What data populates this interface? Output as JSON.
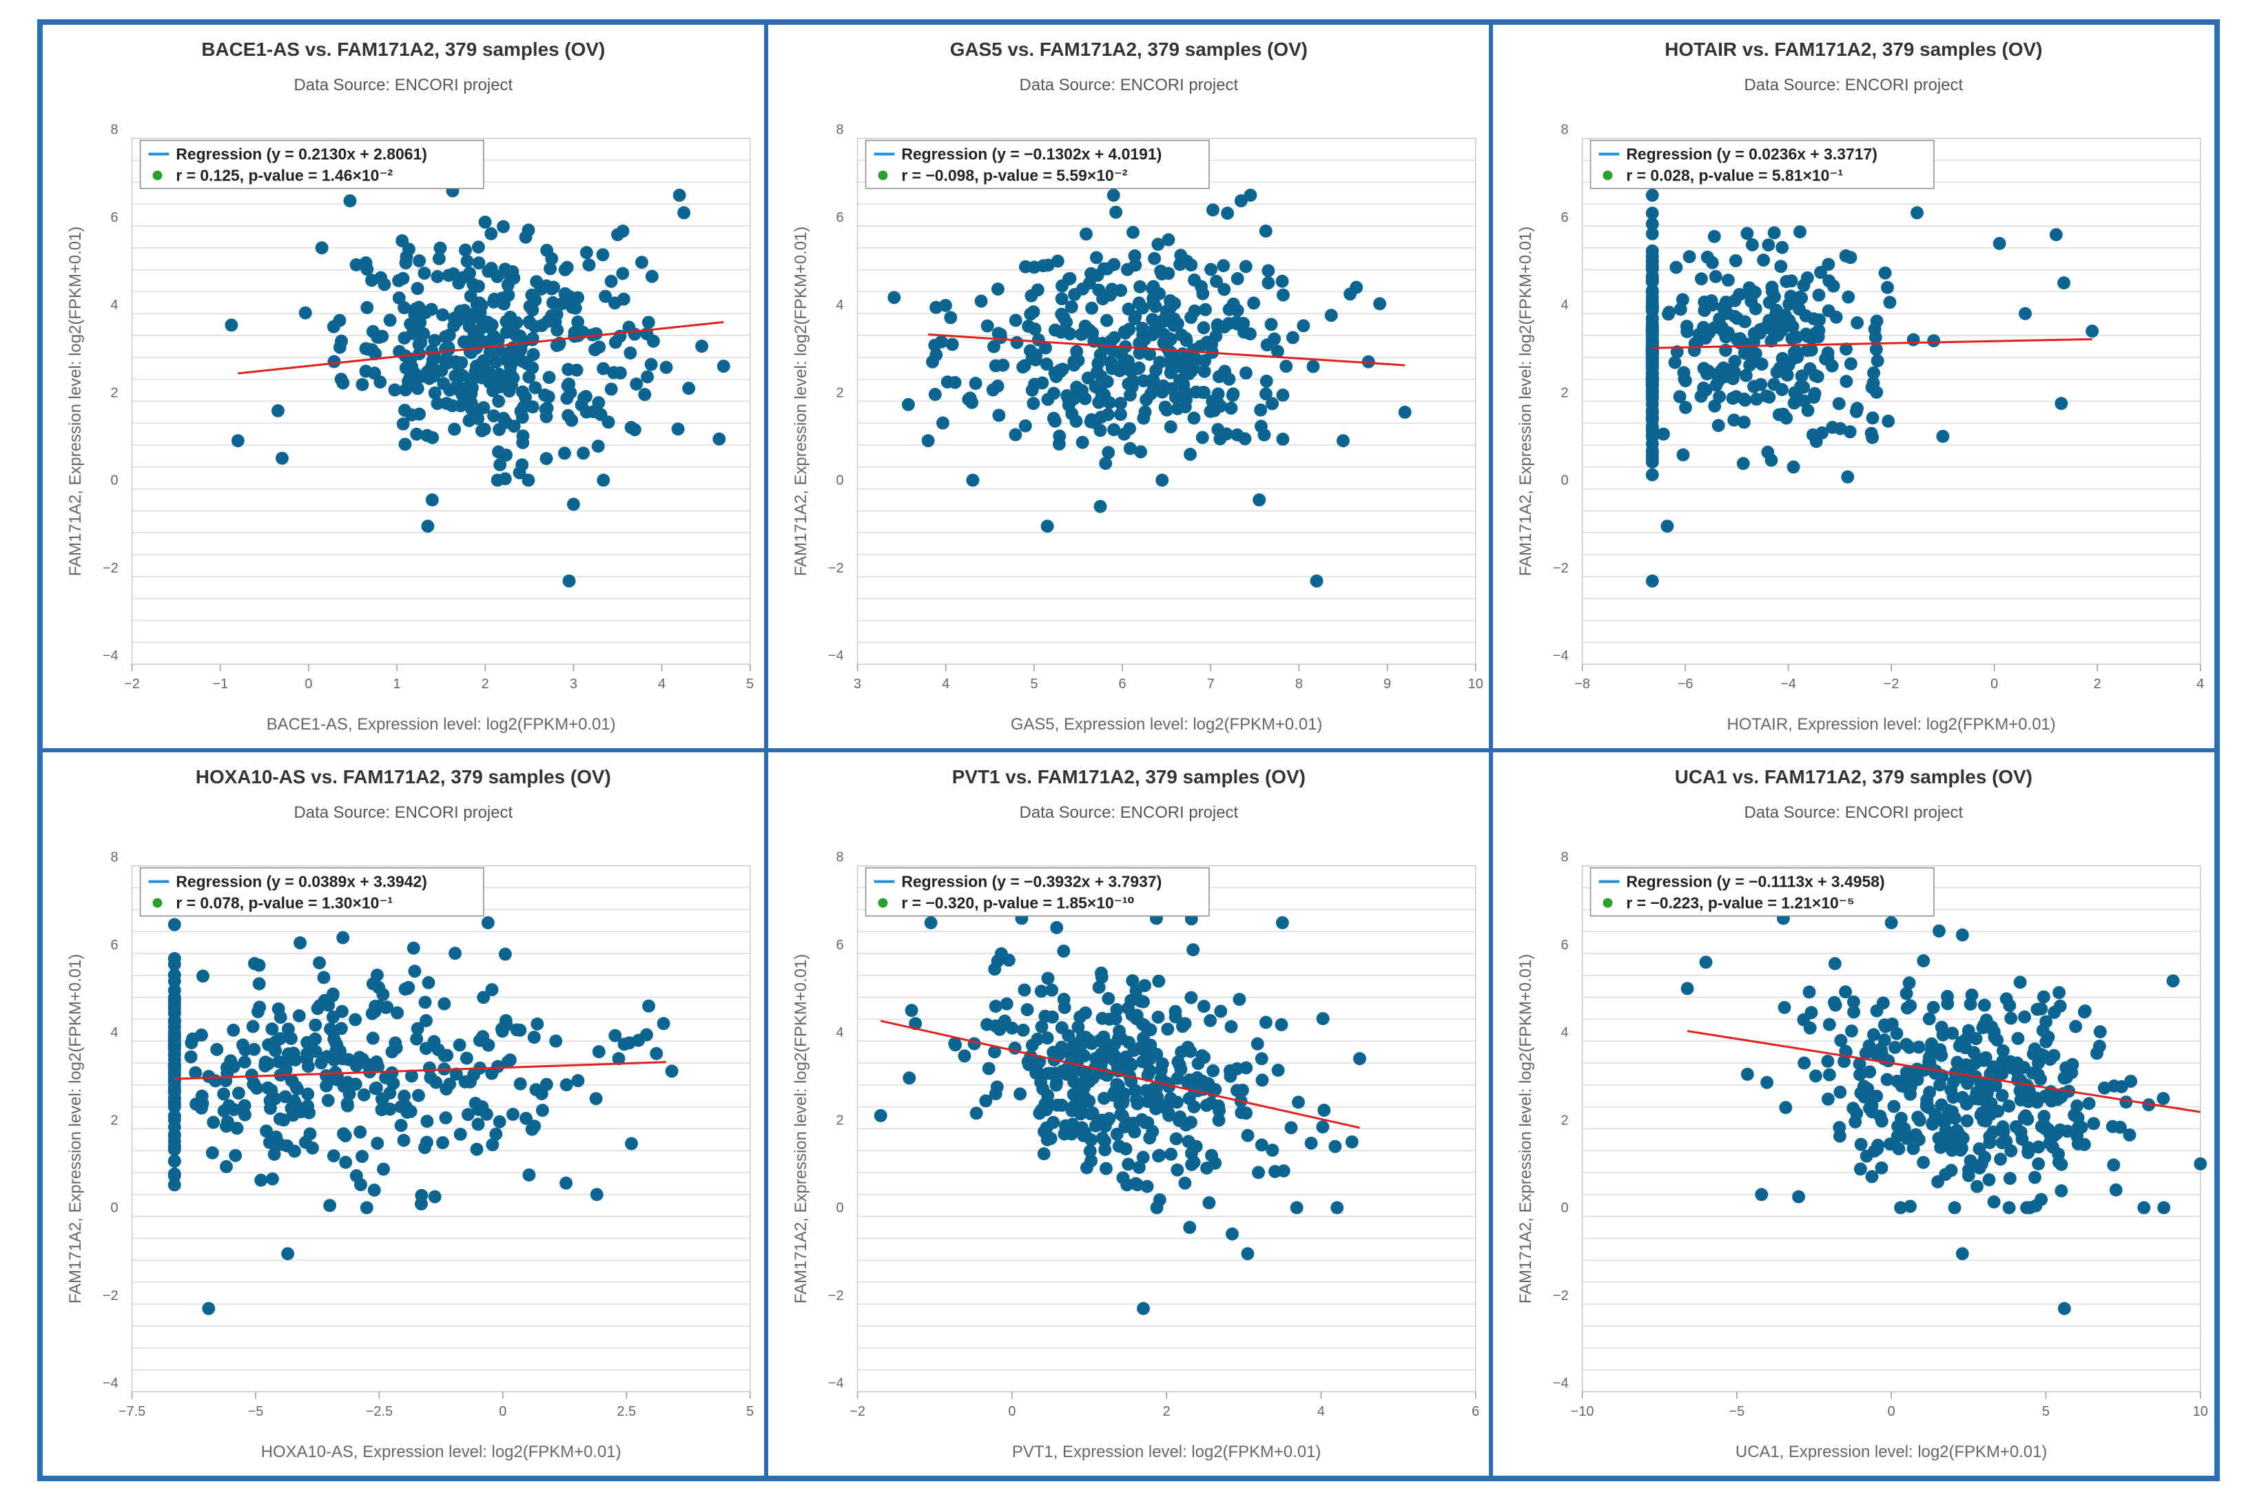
{
  "colors": {
    "point": "#0c6590",
    "regression_line": "#e02020",
    "legend_line": "#1f8fd6",
    "legend_dot": "#2ca02c",
    "border": "#2f6db2"
  },
  "chart_data": [
    {
      "type": "scatter",
      "title": "BACE1-AS vs. FAM171A2, 379 samples (OV)",
      "subtitle": "Data Source: ENCORI project",
      "xlabel": "BACE1-AS, Expression level: log2(FPKM+0.01)",
      "ylabel": "FAM171A2, Expression level: log2(FPKM+0.01)",
      "xlim": [
        -2,
        5
      ],
      "ylim": [
        -4,
        8
      ],
      "xticks": [
        -2,
        -1,
        0,
        1,
        2,
        3,
        4,
        5
      ],
      "xtick_labels": [
        "−2",
        "−1",
        "0",
        "1",
        "2",
        "3",
        "4",
        "5"
      ],
      "yticks": [
        -4,
        -2,
        0,
        2,
        4,
        6,
        8
      ],
      "ytick_labels": [
        "−4",
        "−2",
        "0",
        "2",
        "4",
        "6",
        "8"
      ],
      "legend": {
        "regression": "Regression (y = 0.2130x + 2.8061)",
        "stats": "r = 0.125, p-value = 1.46×10⁻²"
      },
      "regression": {
        "slope": 0.213,
        "intercept": 2.8061,
        "x_range": [
          -0.8,
          4.7
        ]
      },
      "points": {
        "count": 379,
        "center": [
          2.1,
          3.3
        ],
        "spread": [
          0.85,
          1.2
        ],
        "cluster": null,
        "outliers": [
          [
            -0.8,
            1.1
          ],
          [
            -0.3,
            0.7
          ],
          [
            0.15,
            5.5
          ],
          [
            1.35,
            -0.85
          ],
          [
            1.4,
            -0.25
          ],
          [
            2.95,
            -2.1
          ],
          [
            3.0,
            -0.35
          ],
          [
            4.7,
            2.8
          ],
          [
            4.2,
            6.7
          ],
          [
            4.25,
            6.3
          ],
          [
            3.85,
            3.8
          ],
          [
            3.5,
            5.8
          ]
        ]
      }
    },
    {
      "type": "scatter",
      "title": "GAS5 vs. FAM171A2, 379 samples (OV)",
      "subtitle": "Data Source: ENCORI project",
      "xlabel": "GAS5, Expression level: log2(FPKM+0.01)",
      "ylabel": "FAM171A2, Expression level: log2(FPKM+0.01)",
      "xlim": [
        3,
        10
      ],
      "ylim": [
        -4,
        8
      ],
      "xticks": [
        3,
        4,
        5,
        6,
        7,
        8,
        9,
        10
      ],
      "xtick_labels": [
        "3",
        "4",
        "5",
        "6",
        "7",
        "8",
        "9",
        "10"
      ],
      "yticks": [
        -4,
        -2,
        0,
        2,
        4,
        6,
        8
      ],
      "ytick_labels": [
        "−4",
        "−2",
        "0",
        "2",
        "4",
        "6",
        "8"
      ],
      "legend": {
        "regression": "Regression (y = −0.1302x + 4.0191)",
        "stats": "r = −0.098, p-value = 5.59×10⁻²"
      },
      "regression": {
        "slope": -0.1302,
        "intercept": 4.0191,
        "x_range": [
          3.8,
          9.2
        ]
      },
      "points": {
        "count": 379,
        "center": [
          6.1,
          3.2
        ],
        "spread": [
          1.0,
          1.25
        ],
        "cluster": null,
        "outliers": [
          [
            3.8,
            1.1
          ],
          [
            5.15,
            -0.85
          ],
          [
            5.75,
            -0.4
          ],
          [
            7.55,
            -0.25
          ],
          [
            8.2,
            -2.1
          ],
          [
            9.2,
            1.75
          ],
          [
            8.5,
            1.1
          ],
          [
            3.85,
            2.9
          ],
          [
            5.9,
            6.7
          ],
          [
            7.45,
            6.7
          ]
        ]
      }
    },
    {
      "type": "scatter",
      "title": "HOTAIR vs. FAM171A2, 379 samples (OV)",
      "subtitle": "Data Source: ENCORI project",
      "xlabel": "HOTAIR, Expression level: log2(FPKM+0.01)",
      "ylabel": "FAM171A2, Expression level: log2(FPKM+0.01)",
      "xlim": [
        -8,
        4
      ],
      "ylim": [
        -4,
        8
      ],
      "xticks": [
        -8,
        -6,
        -4,
        -2,
        0,
        2,
        4
      ],
      "xtick_labels": [
        "−8",
        "−6",
        "−4",
        "−2",
        "0",
        "2",
        "4"
      ],
      "yticks": [
        -4,
        -2,
        0,
        2,
        4,
        6,
        8
      ],
      "ytick_labels": [
        "−4",
        "−2",
        "0",
        "2",
        "4",
        "6",
        "8"
      ],
      "legend": {
        "regression": "Regression (y = 0.0236x + 3.3717)",
        "stats": "r = 0.028, p-value = 5.81×10⁻¹"
      },
      "regression": {
        "slope": 0.0236,
        "intercept": 3.3717,
        "x_range": [
          -6.64,
          1.9
        ]
      },
      "points": {
        "count": 379,
        "center": [
          -4.6,
          3.3
        ],
        "spread": [
          1.3,
          1.15
        ],
        "cluster": {
          "x": -6.64,
          "fraction": 0.35
        },
        "outliers": [
          [
            -6.64,
            -2.1
          ],
          [
            -6.35,
            -0.85
          ],
          [
            -3.9,
            0.5
          ],
          [
            1.2,
            5.8
          ],
          [
            1.35,
            4.7
          ],
          [
            0.1,
            5.6
          ],
          [
            1.9,
            3.6
          ],
          [
            1.3,
            1.95
          ],
          [
            0.6,
            4.0
          ],
          [
            -1.5,
            6.3
          ],
          [
            -1.0,
            1.2
          ]
        ]
      }
    },
    {
      "type": "scatter",
      "title": "HOXA10-AS vs. FAM171A2, 379 samples (OV)",
      "subtitle": "Data Source: ENCORI project",
      "xlabel": "HOXA10-AS, Expression level: log2(FPKM+0.01)",
      "ylabel": "FAM171A2, Expression level: log2(FPKM+0.01)",
      "xlim": [
        -7.5,
        5
      ],
      "ylim": [
        -4,
        8
      ],
      "xticks": [
        -7.5,
        -5,
        -2.5,
        0,
        2.5,
        5
      ],
      "xtick_labels": [
        "−7.5",
        "−5",
        "−2.5",
        "0",
        "2.5",
        "5"
      ],
      "yticks": [
        -4,
        -2,
        0,
        2,
        4,
        6,
        8
      ],
      "ytick_labels": [
        "−4",
        "−2",
        "0",
        "2",
        "4",
        "6",
        "8"
      ],
      "legend": {
        "regression": "Regression (y = 0.0389x + 3.3942)",
        "stats": "r = 0.078, p-value = 1.30×10⁻¹"
      },
      "regression": {
        "slope": 0.0389,
        "intercept": 3.3942,
        "x_range": [
          -6.64,
          3.3
        ]
      },
      "points": {
        "count": 379,
        "center": [
          -3.0,
          3.2
        ],
        "spread": [
          2.3,
          1.25
        ],
        "cluster": {
          "x": -6.64,
          "fraction": 0.2
        },
        "outliers": [
          [
            -5.95,
            -2.1
          ],
          [
            -4.35,
            -0.85
          ],
          [
            -3.5,
            0.25
          ],
          [
            1.9,
            0.5
          ],
          [
            -0.3,
            6.7
          ],
          [
            2.95,
            4.8
          ],
          [
            3.25,
            4.4
          ],
          [
            -2.6,
            0.6
          ]
        ]
      }
    },
    {
      "type": "scatter",
      "title": "PVT1 vs. FAM171A2, 379 samples (OV)",
      "subtitle": "Data Source: ENCORI project",
      "xlabel": "PVT1, Expression level: log2(FPKM+0.01)",
      "ylabel": "FAM171A2, Expression level: log2(FPKM+0.01)",
      "xlim": [
        -2,
        6
      ],
      "ylim": [
        -4,
        8
      ],
      "xticks": [
        -2,
        0,
        2,
        4,
        6
      ],
      "xtick_labels": [
        "−2",
        "0",
        "2",
        "4",
        "6"
      ],
      "yticks": [
        -4,
        -2,
        0,
        2,
        4,
        6,
        8
      ],
      "ytick_labels": [
        "−4",
        "−2",
        "0",
        "2",
        "4",
        "6",
        "8"
      ],
      "legend": {
        "regression": "Regression (y = −0.3932x + 3.7937)",
        "stats": "r = −0.320, p-value = 1.85×10⁻¹⁰"
      },
      "regression": {
        "slope": -0.3932,
        "intercept": 3.7937,
        "x_range": [
          -1.7,
          4.5
        ]
      },
      "points": {
        "count": 379,
        "center": [
          1.4,
          3.2
        ],
        "spread": [
          0.95,
          1.25
        ],
        "slope": -0.39,
        "cluster": null,
        "outliers": [
          [
            -1.7,
            2.3
          ],
          [
            -1.3,
            4.7
          ],
          [
            -1.25,
            4.4
          ],
          [
            -1.05,
            6.7
          ],
          [
            1.7,
            -2.1
          ],
          [
            3.05,
            -0.85
          ],
          [
            2.85,
            -0.4
          ],
          [
            2.3,
            -0.25
          ],
          [
            3.5,
            6.7
          ],
          [
            4.5,
            3.6
          ],
          [
            4.4,
            1.7
          ]
        ]
      }
    },
    {
      "type": "scatter",
      "title": "UCA1 vs. FAM171A2, 379 samples (OV)",
      "subtitle": "Data Source: ENCORI project",
      "xlabel": "UCA1, Expression level: log2(FPKM+0.01)",
      "ylabel": "FAM171A2, Expression level: log2(FPKM+0.01)",
      "xlim": [
        -10,
        10
      ],
      "ylim": [
        -4,
        8
      ],
      "xticks": [
        -10,
        -5,
        0,
        5,
        10
      ],
      "xtick_labels": [
        "−10",
        "−5",
        "0",
        "5",
        "10"
      ],
      "yticks": [
        -4,
        -2,
        0,
        2,
        4,
        6,
        8
      ],
      "ytick_labels": [
        "−4",
        "−2",
        "0",
        "2",
        "4",
        "6",
        "8"
      ],
      "legend": {
        "regression": "Regression (y = −0.1113x + 3.4958)",
        "stats": "r = −0.223, p-value = 1.21×10⁻⁵"
      },
      "regression": {
        "slope": -0.1113,
        "intercept": 3.4958,
        "x_range": [
          -6.6,
          10
        ]
      },
      "points": {
        "count": 379,
        "center": [
          2.3,
          3.1
        ],
        "spread": [
          2.6,
          1.2
        ],
        "slope": -0.11,
        "cluster": null,
        "outliers": [
          [
            -6.6,
            5.2
          ],
          [
            -6.0,
            5.8
          ],
          [
            -4.2,
            0.5
          ],
          [
            -3.0,
            0.45
          ],
          [
            5.6,
            -2.1
          ],
          [
            2.3,
            -0.85
          ],
          [
            0.3,
            0.2
          ],
          [
            10.0,
            1.2
          ],
          [
            0.0,
            6.7
          ]
        ]
      }
    }
  ]
}
